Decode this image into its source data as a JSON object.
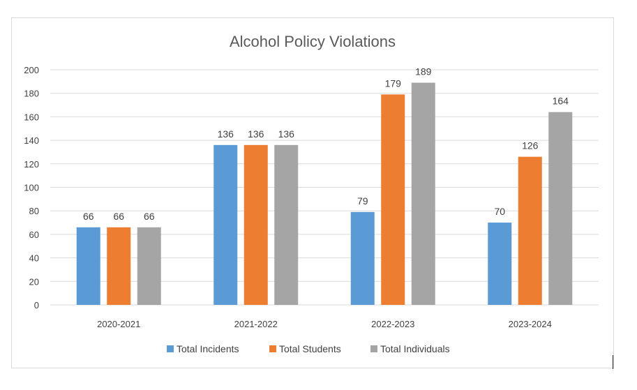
{
  "chart_data": {
    "type": "bar",
    "title": "Alcohol Policy Violations",
    "xlabel": "",
    "ylabel": "",
    "categories": [
      "2020-2021",
      "2021-2022",
      "2022-2023",
      "2023-2024"
    ],
    "series": [
      {
        "name": "Total Incidents",
        "color": "#5b9bd5",
        "values": [
          66,
          136,
          79,
          70
        ]
      },
      {
        "name": "Total Students",
        "color": "#ed7d31",
        "values": [
          66,
          136,
          179,
          126
        ]
      },
      {
        "name": "Total Individuals",
        "color": "#a5a5a5",
        "values": [
          66,
          136,
          189,
          164
        ]
      }
    ],
    "ylim": [
      0,
      200
    ],
    "yticks": [
      "0",
      "20",
      "40",
      "60",
      "80",
      "100",
      "120",
      "140",
      "160",
      "180",
      "200"
    ],
    "grid": true,
    "legend_position": "bottom",
    "data_labels": true
  }
}
